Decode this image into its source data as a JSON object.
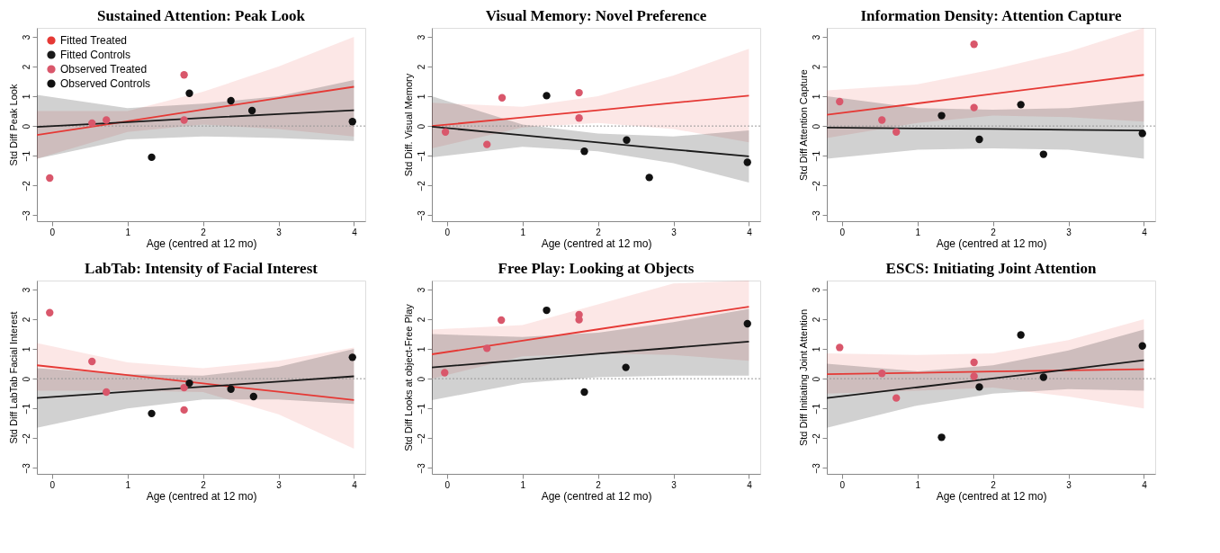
{
  "chart_data": [
    {
      "type": "scatter",
      "title": "Sustained Attention: Peak Look",
      "xlabel": "Age (centred at 12 mo)",
      "ylabel": "Std Diff Peak Look",
      "xlim": [
        -0.2,
        4.15
      ],
      "ylim": [
        -3.2,
        3.3
      ],
      "xticks": [
        0,
        1,
        2,
        3,
        4
      ],
      "yticks": [
        -3,
        -2,
        -1,
        0,
        1,
        2,
        3
      ],
      "grid": false,
      "legend": "top left",
      "line_style": "solid",
      "ref_lines": [
        {
          "axis": "y",
          "value": 0,
          "color": "#999999",
          "line_style": "dotted"
        }
      ],
      "series": [
        {
          "name": "Fitted Treated",
          "type": "line",
          "color": "#e53935",
          "x": [
            -0.2,
            1,
            2,
            3,
            4
          ],
          "values": [
            -0.3,
            0.16,
            0.55,
            0.94,
            1.32
          ],
          "lower": [
            -1.1,
            -0.2,
            0.05,
            -0.1,
            -0.35
          ],
          "upper": [
            0.5,
            0.5,
            1.15,
            2.0,
            3.0
          ]
        },
        {
          "name": "Fitted Controls",
          "type": "line",
          "color": "#1a1a1a",
          "x": [
            -0.2,
            1,
            2,
            3,
            4
          ],
          "values": [
            -0.03,
            0.13,
            0.27,
            0.4,
            0.53
          ],
          "lower": [
            -1.1,
            -0.45,
            -0.35,
            -0.4,
            -0.5
          ],
          "upper": [
            1.05,
            0.6,
            0.75,
            1.0,
            1.55
          ]
        },
        {
          "name": "Observed Treated",
          "type": "scatter",
          "marker": "circle",
          "color": "#d9576b",
          "x": [
            -0.03,
            0.53,
            0.72,
            1.75,
            1.75
          ],
          "values": [
            -1.75,
            0.1,
            0.2,
            1.72,
            0.2
          ]
        },
        {
          "name": "Observed Controls",
          "type": "scatter",
          "marker": "circle",
          "color": "#111111",
          "x": [
            1.32,
            1.82,
            2.37,
            2.65,
            3.98
          ],
          "values": [
            -1.05,
            1.1,
            0.85,
            0.52,
            0.15
          ]
        }
      ]
    },
    {
      "type": "scatter",
      "title": "Visual Memory: Novel Preference",
      "xlabel": "Age (centred at 12 mo)",
      "ylabel": "Std Diff. Visual Memory",
      "xlim": [
        -0.2,
        4.15
      ],
      "ylim": [
        -3.2,
        3.3
      ],
      "xticks": [
        0,
        1,
        2,
        3,
        4
      ],
      "yticks": [
        -3,
        -2,
        -1,
        0,
        1,
        2,
        3
      ],
      "grid": false,
      "legend": "top left",
      "line_style": "solid",
      "ref_lines": [
        {
          "axis": "y",
          "value": 0,
          "color": "#999999",
          "line_style": "dotted"
        }
      ],
      "series": [
        {
          "name": "Fitted Treated",
          "type": "line",
          "color": "#e53935",
          "x": [
            -0.2,
            1,
            2,
            3,
            4
          ],
          "values": [
            0.0,
            0.29,
            0.53,
            0.78,
            1.02
          ],
          "lower": [
            -0.75,
            -0.05,
            0.1,
            -0.1,
            -0.55
          ],
          "upper": [
            0.78,
            0.65,
            1.0,
            1.7,
            2.6
          ]
        },
        {
          "name": "Fitted Controls",
          "type": "line",
          "color": "#1a1a1a",
          "x": [
            -0.2,
            1,
            2,
            3,
            4
          ],
          "values": [
            -0.02,
            -0.31,
            -0.55,
            -0.79,
            -1.02
          ],
          "lower": [
            -1.05,
            -0.7,
            -0.85,
            -1.25,
            -1.9
          ],
          "upper": [
            1.0,
            0.05,
            -0.25,
            -0.35,
            -0.15
          ]
        },
        {
          "name": "Observed Treated",
          "type": "scatter",
          "marker": "circle",
          "color": "#d9576b",
          "x": [
            -0.02,
            0.53,
            0.73,
            1.75,
            1.75
          ],
          "values": [
            -0.2,
            -0.62,
            0.95,
            1.12,
            0.27
          ]
        },
        {
          "name": "Observed Controls",
          "type": "scatter",
          "marker": "circle",
          "color": "#111111",
          "x": [
            1.32,
            1.82,
            2.38,
            2.68,
            3.98
          ],
          "values": [
            1.02,
            -0.85,
            -0.47,
            -1.73,
            -1.22
          ]
        }
      ]
    },
    {
      "type": "scatter",
      "title": "Information Density: Attention Capture",
      "xlabel": "Age (centred at 12 mo)",
      "ylabel": "Std Diff Attention Capture",
      "xlim": [
        -0.2,
        4.15
      ],
      "ylim": [
        -3.2,
        3.3
      ],
      "xticks": [
        0,
        1,
        2,
        3,
        4
      ],
      "yticks": [
        -3,
        -2,
        -1,
        0,
        1,
        2,
        3
      ],
      "grid": false,
      "legend": "bottom left",
      "line_style": "solid",
      "ref_lines": [
        {
          "axis": "y",
          "value": 0,
          "color": "#999999",
          "line_style": "dotted"
        }
      ],
      "series": [
        {
          "name": "Fitted Treated",
          "type": "line",
          "color": "#e53935",
          "x": [
            -0.2,
            1,
            2,
            3,
            4
          ],
          "values": [
            0.38,
            0.76,
            1.08,
            1.4,
            1.72
          ],
          "lower": [
            -0.4,
            0.1,
            0.35,
            0.3,
            0.15
          ],
          "upper": [
            1.2,
            1.4,
            1.9,
            2.5,
            3.3
          ]
        },
        {
          "name": "Fitted Controls",
          "type": "line",
          "color": "#1a1a1a",
          "x": [
            -0.2,
            1,
            2,
            3,
            4
          ],
          "values": [
            -0.05,
            -0.08,
            -0.1,
            -0.13,
            -0.15
          ],
          "lower": [
            -1.1,
            -0.8,
            -0.75,
            -0.8,
            -1.1
          ],
          "upper": [
            1.0,
            0.6,
            0.55,
            0.6,
            0.85
          ]
        },
        {
          "name": "Observed Treated",
          "type": "scatter",
          "marker": "circle",
          "color": "#d9576b",
          "x": [
            -0.03,
            0.53,
            0.72,
            1.75,
            1.75
          ],
          "values": [
            0.82,
            0.2,
            -0.2,
            2.75,
            0.62
          ]
        },
        {
          "name": "Observed Controls",
          "type": "scatter",
          "marker": "circle",
          "color": "#111111",
          "x": [
            1.32,
            1.82,
            2.37,
            2.67,
            3.98
          ],
          "values": [
            0.35,
            -0.45,
            0.72,
            -0.95,
            -0.25
          ]
        }
      ]
    },
    {
      "type": "scatter",
      "title": "LabTab: Intensity of Facial Interest",
      "xlabel": "Age (centred at 12 mo)",
      "ylabel": "Std Diff LabTab Facial Interest",
      "xlim": [
        -0.2,
        4.15
      ],
      "ylim": [
        -3.2,
        3.3
      ],
      "xticks": [
        0,
        1,
        2,
        3,
        4
      ],
      "yticks": [
        -3,
        -2,
        -1,
        0,
        1,
        2,
        3
      ],
      "grid": false,
      "legend": "top",
      "line_style": "solid",
      "ref_lines": [
        {
          "axis": "y",
          "value": 0,
          "color": "#999999",
          "line_style": "dotted"
        }
      ],
      "series": [
        {
          "name": "Fitted Treated",
          "type": "line",
          "color": "#e53935",
          "x": [
            -0.2,
            1,
            2,
            3,
            4
          ],
          "values": [
            0.45,
            0.12,
            -0.16,
            -0.44,
            -0.72
          ],
          "lower": [
            -0.4,
            -0.4,
            -0.45,
            -1.2,
            -2.35
          ],
          "upper": [
            1.2,
            0.55,
            0.35,
            0.6,
            1.05
          ]
        },
        {
          "name": "Fitted Controls",
          "type": "line",
          "color": "#1a1a1a",
          "x": [
            -0.2,
            1,
            2,
            3,
            4
          ],
          "values": [
            -0.65,
            -0.44,
            -0.27,
            -0.1,
            0.08
          ],
          "lower": [
            -1.65,
            -1.0,
            -0.7,
            -0.7,
            -0.85
          ],
          "upper": [
            0.35,
            0.15,
            0.1,
            0.4,
            1.0
          ]
        },
        {
          "name": "Observed Treated",
          "type": "scatter",
          "marker": "circle",
          "color": "#d9576b",
          "x": [
            -0.03,
            0.53,
            0.72,
            1.75,
            1.75
          ],
          "values": [
            2.22,
            0.58,
            -0.45,
            -0.3,
            -1.05
          ]
        },
        {
          "name": "Observed Controls",
          "type": "scatter",
          "marker": "circle",
          "color": "#111111",
          "x": [
            1.32,
            1.82,
            2.37,
            2.67,
            3.98
          ],
          "values": [
            -1.17,
            -0.15,
            -0.35,
            -0.6,
            0.72
          ]
        }
      ]
    },
    {
      "type": "scatter",
      "title": "Free Play: Looking at Objects",
      "xlabel": "Age (centred at 12 mo)",
      "ylabel": "Std Diff Looks at object-Free Play",
      "xlim": [
        -0.2,
        4.15
      ],
      "ylim": [
        -3.2,
        3.3
      ],
      "xticks": [
        0,
        1,
        2,
        3,
        4
      ],
      "yticks": [
        -3,
        -2,
        -1,
        0,
        1,
        2,
        3
      ],
      "grid": false,
      "legend": "bottom left",
      "line_style": "solid",
      "ref_lines": [
        {
          "axis": "y",
          "value": 0,
          "color": "#999999",
          "line_style": "dotted"
        }
      ],
      "series": [
        {
          "name": "Fitted Treated",
          "type": "line",
          "color": "#e53935",
          "x": [
            -0.2,
            1,
            2,
            3,
            4
          ],
          "values": [
            0.82,
            1.28,
            1.66,
            2.04,
            2.42
          ],
          "lower": [
            0.0,
            0.75,
            0.85,
            0.8,
            0.6
          ],
          "upper": [
            1.65,
            1.8,
            2.5,
            3.2,
            3.3
          ]
        },
        {
          "name": "Fitted Controls",
          "type": "line",
          "color": "#1a1a1a",
          "x": [
            -0.2,
            1,
            2,
            3,
            4
          ],
          "values": [
            0.38,
            0.63,
            0.84,
            1.04,
            1.25
          ],
          "lower": [
            -0.72,
            -0.15,
            0.05,
            0.1,
            0.1
          ],
          "upper": [
            1.5,
            1.4,
            1.55,
            1.9,
            2.35
          ]
        },
        {
          "name": "Observed Treated",
          "type": "scatter",
          "marker": "circle",
          "color": "#d9576b",
          "x": [
            -0.03,
            0.53,
            0.72,
            1.75,
            1.75
          ],
          "values": [
            0.2,
            1.02,
            1.97,
            2.15,
            1.98
          ]
        },
        {
          "name": "Observed Controls",
          "type": "scatter",
          "marker": "circle",
          "color": "#111111",
          "x": [
            1.32,
            1.82,
            2.37,
            3.98
          ],
          "values": [
            2.3,
            -0.45,
            0.38,
            1.85
          ]
        }
      ]
    },
    {
      "type": "scatter",
      "title": "ESCS: Initiating Joint Attention",
      "xlabel": "Age (centred at 12 mo)",
      "ylabel": "Std Diff Initiating Joint Attention",
      "xlim": [
        -0.2,
        4.15
      ],
      "ylim": [
        -3.2,
        3.3
      ],
      "xticks": [
        0,
        1,
        2,
        3,
        4
      ],
      "yticks": [
        -3,
        -2,
        -1,
        0,
        1,
        2,
        3
      ],
      "grid": false,
      "legend": "top left",
      "line_style": "solid",
      "ref_lines": [
        {
          "axis": "y",
          "value": 0,
          "color": "#999999",
          "line_style": "dotted"
        }
      ],
      "series": [
        {
          "name": "Fitted Treated",
          "type": "line",
          "color": "#e53935",
          "x": [
            -0.2,
            1,
            2,
            3,
            4
          ],
          "values": [
            0.15,
            0.2,
            0.24,
            0.28,
            0.32
          ],
          "lower": [
            -0.5,
            -0.4,
            -0.3,
            -0.6,
            -1.0
          ],
          "upper": [
            0.85,
            0.8,
            0.85,
            1.3,
            2.0
          ]
        },
        {
          "name": "Fitted Controls",
          "type": "line",
          "color": "#1a1a1a",
          "x": [
            -0.2,
            1,
            2,
            3,
            4
          ],
          "values": [
            -0.65,
            -0.29,
            0.01,
            0.31,
            0.62
          ],
          "lower": [
            -1.65,
            -0.9,
            -0.5,
            -0.35,
            -0.4
          ],
          "upper": [
            0.5,
            0.25,
            0.45,
            0.95,
            1.65
          ]
        },
        {
          "name": "Observed Treated",
          "type": "scatter",
          "marker": "circle",
          "color": "#d9576b",
          "x": [
            -0.03,
            0.53,
            0.72,
            1.75,
            1.75
          ],
          "values": [
            1.05,
            0.18,
            -0.65,
            0.55,
            0.08
          ]
        },
        {
          "name": "Observed Controls",
          "type": "scatter",
          "marker": "circle",
          "color": "#111111",
          "x": [
            1.32,
            1.82,
            2.37,
            2.67,
            3.98
          ],
          "values": [
            -1.97,
            -0.28,
            1.47,
            0.05,
            1.1
          ]
        }
      ]
    }
  ]
}
